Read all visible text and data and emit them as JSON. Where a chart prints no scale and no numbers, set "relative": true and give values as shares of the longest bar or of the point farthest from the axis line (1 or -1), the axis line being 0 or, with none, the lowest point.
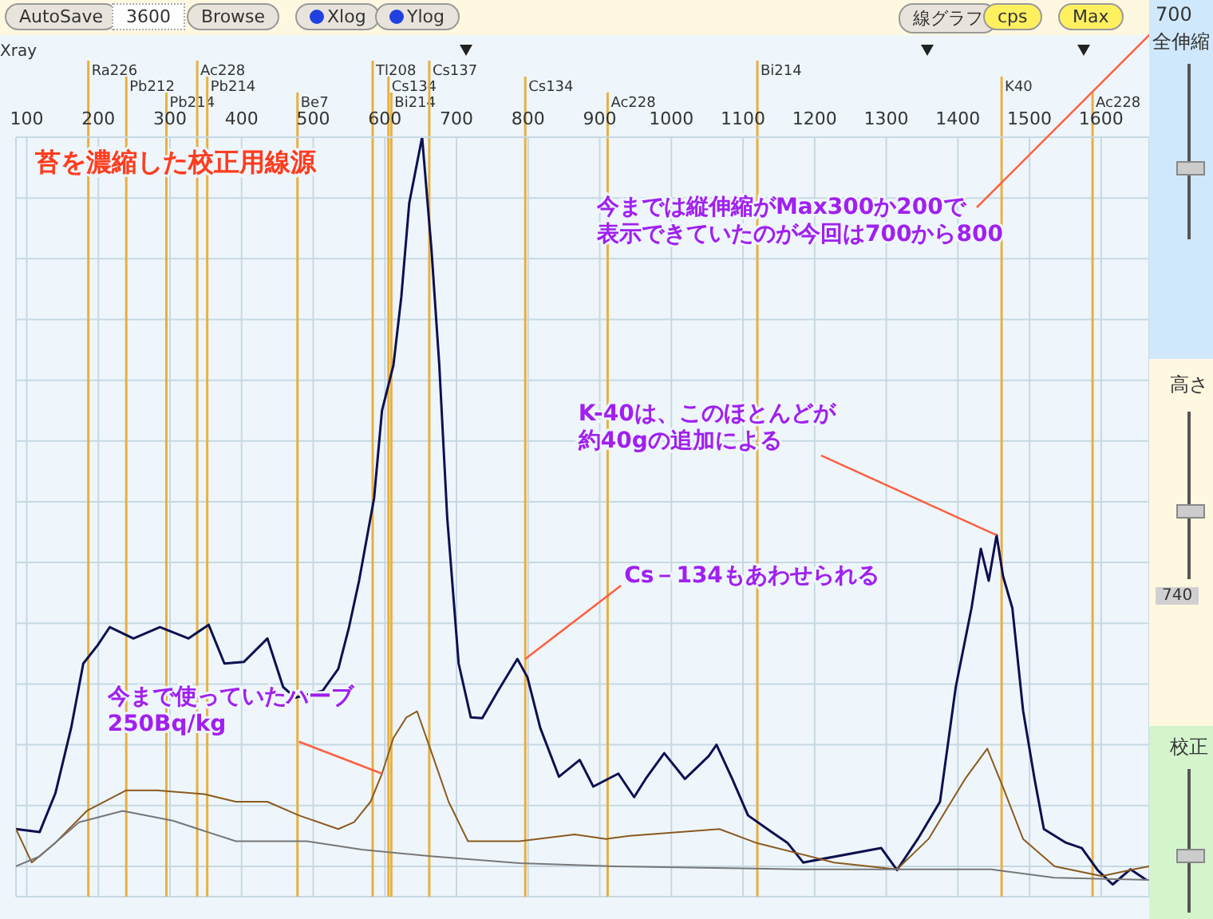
{
  "chart_data": {
    "type": "line",
    "title": "苔を濃縮した校正用線源",
    "relative": true,
    "legend": false,
    "grid": true,
    "marker": "none",
    "line_style": "solid",
    "xlim": [
      85,
      1667
    ],
    "xticks": [
      100,
      200,
      300,
      400,
      500,
      600,
      700,
      800,
      900,
      1000,
      1100,
      1200,
      1300,
      1400,
      1500,
      1600
    ],
    "series": [
      {
        "color": "#0d1050",
        "x": [
          85,
          118,
          140,
          162,
          179,
          199,
          216,
          249,
          286,
          326,
          354,
          376,
          403,
          436,
          458,
          475,
          513,
          535,
          550,
          564,
          585,
          596,
          612,
          623,
          634,
          652,
          665,
          676,
          687,
          703,
          720,
          736,
          758,
          785,
          799,
          817,
          843,
          872,
          891,
          926,
          948,
          964,
          990,
          1019,
          1052,
          1063,
          1085,
          1107,
          1140,
          1162,
          1184,
          1293,
          1315,
          1344,
          1375,
          1397,
          1419,
          1432,
          1443,
          1454,
          1463,
          1476,
          1491,
          1507,
          1520,
          1551,
          1573,
          1595,
          1616,
          1641,
          1663
        ],
        "values": [
          0.089,
          0.085,
          0.136,
          0.222,
          0.307,
          0.331,
          0.355,
          0.34,
          0.355,
          0.34,
          0.358,
          0.307,
          0.309,
          0.34,
          0.276,
          0.262,
          0.271,
          0.3,
          0.355,
          0.416,
          0.525,
          0.64,
          0.7,
          0.79,
          0.913,
          1.0,
          0.853,
          0.7,
          0.5,
          0.307,
          0.236,
          0.235,
          0.271,
          0.313,
          0.289,
          0.222,
          0.158,
          0.18,
          0.145,
          0.162,
          0.131,
          0.155,
          0.189,
          0.155,
          0.185,
          0.2,
          0.155,
          0.107,
          0.085,
          0.071,
          0.045,
          0.064,
          0.035,
          0.076,
          0.125,
          0.276,
          0.38,
          0.458,
          0.416,
          0.476,
          0.422,
          0.38,
          0.245,
          0.155,
          0.089,
          0.071,
          0.064,
          0.035,
          0.016,
          0.036,
          0.022
        ]
      },
      {
        "color": "#8b5a1e",
        "x": [
          85,
          107,
          140,
          184,
          239,
          282,
          348,
          392,
          436,
          480,
          535,
          557,
          580,
          596,
          612,
          630,
          645,
          667,
          689,
          716,
          788,
          865,
          909,
          942,
          1067,
          1118,
          1227,
          1315,
          1359,
          1410,
          1441,
          1463,
          1491,
          1535,
          1601,
          1645,
          1667
        ],
        "values": [
          0.089,
          0.045,
          0.071,
          0.113,
          0.14,
          0.14,
          0.135,
          0.125,
          0.125,
          0.107,
          0.089,
          0.098,
          0.125,
          0.162,
          0.209,
          0.236,
          0.244,
          0.185,
          0.125,
          0.073,
          0.073,
          0.082,
          0.076,
          0.08,
          0.089,
          0.071,
          0.045,
          0.036,
          0.076,
          0.155,
          0.195,
          0.144,
          0.076,
          0.04,
          0.027,
          0.036,
          0.04
        ]
      },
      {
        "color": "#777777",
        "x": [
          85,
          118,
          173,
          234,
          304,
          392,
          491,
          568,
          667,
          788,
          920,
          1183,
          1446,
          1535,
          1667
        ],
        "values": [
          0.04,
          0.053,
          0.098,
          0.113,
          0.1,
          0.073,
          0.073,
          0.062,
          0.053,
          0.044,
          0.04,
          0.036,
          0.036,
          0.025,
          0.022
        ]
      }
    ],
    "ref_lines": [
      {
        "axis": "x",
        "value": 186,
        "label": "Ra226",
        "color": "#e8b040"
      },
      {
        "axis": "x",
        "value": 239,
        "label": "Pb212",
        "color": "#e8b040"
      },
      {
        "axis": "x",
        "value": 295,
        "label": "Pb214",
        "color": "#e8b040"
      },
      {
        "axis": "x",
        "value": 338,
        "label": "Ac228",
        "color": "#e8b040"
      },
      {
        "axis": "x",
        "value": 352,
        "label": "Pb214",
        "color": "#e8b040"
      },
      {
        "axis": "x",
        "value": 478,
        "label": "Be7",
        "color": "#e8b040"
      },
      {
        "axis": "x",
        "value": 583,
        "label": "Tl208",
        "color": "#e8b040"
      },
      {
        "axis": "x",
        "value": 605,
        "label": "Cs134",
        "color": "#e8b040"
      },
      {
        "axis": "x",
        "value": 609,
        "label": "Bi214",
        "color": "#e8b040"
      },
      {
        "axis": "x",
        "value": 662,
        "label": "Cs137",
        "color": "#e8b040"
      },
      {
        "axis": "x",
        "value": 796,
        "label": "Cs134",
        "color": "#e8b040"
      },
      {
        "axis": "x",
        "value": 911,
        "label": "Ac228",
        "color": "#e8b040"
      },
      {
        "axis": "x",
        "value": 1120,
        "label": "Bi214",
        "color": "#e8b040"
      },
      {
        "axis": "x",
        "value": 1461,
        "label": "K40",
        "color": "#e8b040"
      },
      {
        "axis": "x",
        "value": 1588,
        "label": "Ac228",
        "color": "#e8b040"
      }
    ],
    "annotations": [
      "今までは縦伸縮がMax300か200で表示できていたのが今回は700から800",
      {
        "text": "Cs－134もあわせられる",
        "x": 796,
        "y": 0.313
      },
      {
        "text": "K-40は、このほとんどが約40gの追加による",
        "x": 1454,
        "y": 0.476
      },
      {
        "text": "今まで使っていたハーブ250Bq/kg",
        "x": 596,
        "y": 0.162
      },
      "AutoSave",
      "3600",
      "Browse",
      "Xlog",
      "Ylog",
      "線グラフ",
      "cps",
      "Max",
      "700",
      "全伸縮",
      "高さ",
      "740",
      "校正",
      "Xray"
    ]
  }
}
